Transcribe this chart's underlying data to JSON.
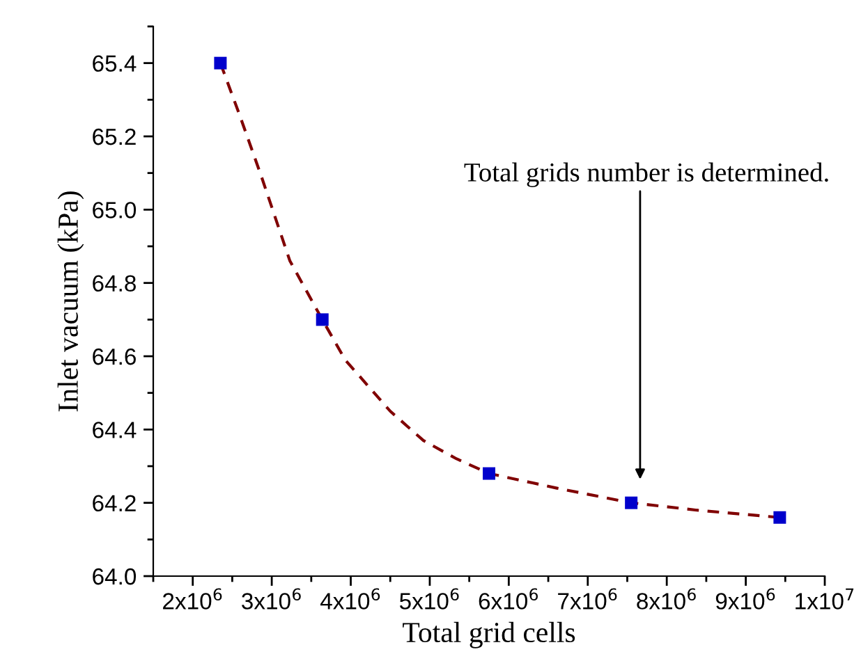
{
  "chart_data": {
    "type": "scatter",
    "xlabel": "Total grid cells",
    "ylabel": "Inlet vacuum (kPa)",
    "series": [
      {
        "type": "line",
        "color": "#800000",
        "line_style": "dashed",
        "marker": "none",
        "x": [
          2350000,
          2590000,
          2870000,
          3230000,
          3640000,
          3930000,
          4500000,
          4920000,
          5340000,
          5750000,
          6610000,
          7550000,
          8380000,
          9430000
        ],
        "values": [
          65.4,
          65.26,
          65.09,
          64.86,
          64.7,
          64.59,
          64.45,
          64.37,
          64.32,
          64.28,
          64.24,
          64.2,
          64.18,
          64.16
        ]
      },
      {
        "color": "#0000cc",
        "marker": "square",
        "x": [
          2350000,
          3640000,
          5750000,
          7550000,
          9430000
        ],
        "values": [
          65.4,
          64.7,
          64.28,
          64.2,
          64.16
        ]
      }
    ],
    "xlim": [
      1500000,
      10000000
    ],
    "xticks": [
      {
        "value": 2000000,
        "label": "2x10$^{6}$"
      },
      {
        "value": 3000000,
        "label": "3x10$^{6}$"
      },
      {
        "value": 4000000,
        "label": "4x10$^{6}$"
      },
      {
        "value": 5000000,
        "label": "5x10$^{6}$"
      },
      {
        "value": 6000000,
        "label": "6x10$^{6}$"
      },
      {
        "value": 7000000,
        "label": "7x10$^{6}$"
      },
      {
        "value": 8000000,
        "label": "8x10$^{6}$"
      },
      {
        "value": 9000000,
        "label": "9x10$^{6}$"
      },
      {
        "value": 10000000,
        "label": "1x10$^{7}$"
      }
    ],
    "ylim": [
      64.0,
      65.5
    ],
    "yticks": [
      {
        "value": 64.0,
        "label": "64.0"
      },
      {
        "value": 64.2,
        "label": "64.2"
      },
      {
        "value": 64.4,
        "label": "64.4"
      },
      {
        "value": 64.6,
        "label": "64.6"
      },
      {
        "value": 64.8,
        "label": "64.8"
      },
      {
        "value": 65.0,
        "label": "65.0"
      },
      {
        "value": 65.2,
        "label": "65.2"
      },
      {
        "value": 65.4,
        "label": "65.4"
      }
    ],
    "annotations": [
      "Total grids number is determined."
    ],
    "grid": false,
    "legend": false
  }
}
